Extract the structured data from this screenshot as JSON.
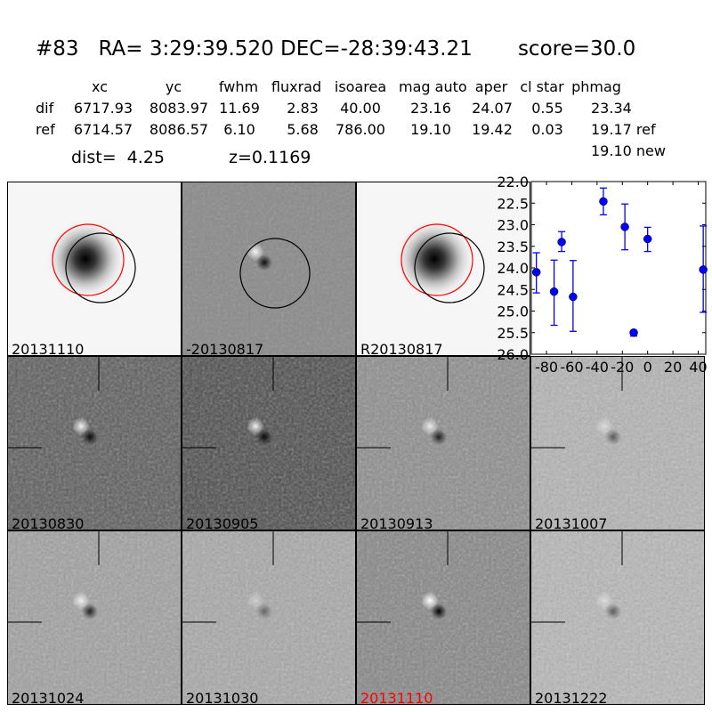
{
  "header": {
    "title": "#83   RA= 3:29:39.520 DEC=-28:39:43.21       score=30.0",
    "columns": [
      "xc",
      "yc",
      "fwhm",
      "fluxrad",
      "isoarea",
      "mag auto",
      "aper",
      "cl star",
      "phmag"
    ],
    "rows": [
      {
        "label": "dif",
        "values": [
          "6717.93",
          "8083.97",
          "11.69",
          "2.83",
          "40.00",
          "23.16",
          "24.07",
          "0.55",
          "23.34"
        ]
      },
      {
        "label": "ref",
        "values": [
          "6714.57",
          "8086.57",
          "6.10",
          "5.68",
          "786.00",
          "19.10",
          "19.42",
          "0.03",
          "19.17 ref"
        ]
      }
    ],
    "extra_phmag": "19.10 new",
    "dist": "dist=  4.25",
    "z": "z=0.1169"
  },
  "panels": [
    {
      "label": "20131110",
      "label_color": "#000000",
      "kind": "image"
    },
    {
      "label": "-20130817",
      "label_color": "#000000",
      "kind": "diff"
    },
    {
      "label": "R20130817",
      "label_color": "#000000",
      "kind": "image"
    },
    {
      "label": "20130830",
      "label_color": "#000000",
      "kind": "stamp"
    },
    {
      "label": "20130905",
      "label_color": "#000000",
      "kind": "stamp"
    },
    {
      "label": "20130913",
      "label_color": "#000000",
      "kind": "stamp"
    },
    {
      "label": "20131007",
      "label_color": "#000000",
      "kind": "stamp"
    },
    {
      "label": "20131024",
      "label_color": "#000000",
      "kind": "stamp"
    },
    {
      "label": "20131030",
      "label_color": "#000000",
      "kind": "stamp"
    },
    {
      "label": "20131110",
      "label_color": "#ff0000",
      "kind": "stamp"
    },
    {
      "label": "20131222",
      "label_color": "#000000",
      "kind": "stamp"
    }
  ],
  "chart_data": {
    "type": "scatter",
    "title": "",
    "xlabel": "",
    "ylabel": "",
    "xlim": [
      -92,
      46
    ],
    "ylim": [
      26.0,
      22.0
    ],
    "y_inverted": true,
    "xticks": [
      "-80",
      "-60",
      "-40",
      "-20",
      "0",
      "20",
      "40"
    ],
    "yticks": [
      "22.0",
      "22.5",
      "23.0",
      "23.5",
      "24.0",
      "24.5",
      "25.0",
      "25.5",
      "26.0"
    ],
    "color": "#0000ff",
    "points": [
      {
        "x": -88,
        "y": 24.1,
        "err_lo": 23.65,
        "err_hi": 24.58
      },
      {
        "x": -74,
        "y": 24.55,
        "err_lo": 23.82,
        "err_hi": 25.33
      },
      {
        "x": -68,
        "y": 23.4,
        "err_lo": 23.16,
        "err_hi": 23.62
      },
      {
        "x": -59,
        "y": 24.67,
        "err_lo": 23.83,
        "err_hi": 25.47
      },
      {
        "x": -35,
        "y": 22.46,
        "err_lo": 22.15,
        "err_hi": 22.77
      },
      {
        "x": -18,
        "y": 23.05,
        "err_lo": 22.52,
        "err_hi": 23.58
      },
      {
        "x": -11,
        "y": 25.5,
        "err_lo": 25.45,
        "err_hi": 25.58
      },
      {
        "x": 0,
        "y": 23.33,
        "err_lo": 23.06,
        "err_hi": 23.62
      },
      {
        "x": 44,
        "y": 24.04,
        "err_lo": 23.03,
        "err_hi": 25.03
      }
    ]
  }
}
